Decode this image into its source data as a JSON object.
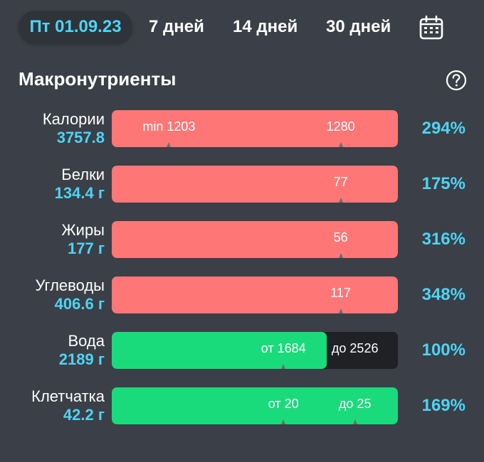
{
  "periods": {
    "active": "Пт 01.09.23",
    "p7": "7 дней",
    "p14": "14 дней",
    "p30": "30 дней"
  },
  "icons": {
    "calendar": "calendar-icon",
    "help": "question-circle-icon"
  },
  "colors": {
    "accent": "#4dd4f5",
    "over": "#ff7676",
    "ok": "#1adb7b",
    "track": "#1f2124"
  },
  "section": {
    "title": "Макронутриенты"
  },
  "rows": [
    {
      "name": "Калории",
      "value": "3757.8",
      "percent": "294%",
      "fill": 1.0,
      "color": "red",
      "marks": [
        {
          "label": "min 1203"
        },
        {
          "label": "1280"
        }
      ]
    },
    {
      "name": "Белки",
      "value": "134.4 г",
      "percent": "175%",
      "fill": 1.0,
      "color": "red",
      "marks": [
        {
          "label": "77"
        }
      ]
    },
    {
      "name": "Жиры",
      "value": "177 г",
      "percent": "316%",
      "fill": 1.0,
      "color": "red",
      "marks": [
        {
          "label": "56"
        }
      ]
    },
    {
      "name": "Углеводы",
      "value": "406.6 г",
      "percent": "348%",
      "fill": 1.0,
      "color": "red",
      "marks": [
        {
          "label": "117"
        }
      ]
    },
    {
      "name": "Вода",
      "value": "2189 г",
      "percent": "100%",
      "fill": 0.75,
      "color": "green",
      "marks": [
        {
          "label": "от 1684"
        },
        {
          "label": "до 2526"
        }
      ]
    },
    {
      "name": "Клетчатка",
      "value": "42.2 г",
      "percent": "169%",
      "fill": 1.0,
      "color": "green",
      "marks": [
        {
          "label": "от 20"
        },
        {
          "label": "до 25"
        }
      ]
    }
  ]
}
